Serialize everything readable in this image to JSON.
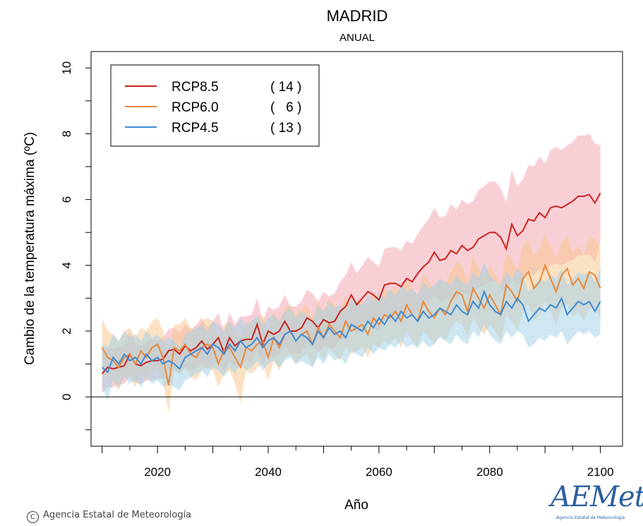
{
  "chart_data": {
    "type": "line",
    "title": "MADRID",
    "subtitle": "ANUAL",
    "xlabel": "Año",
    "ylabel": "Cambio  de la temperatura máxima (ºC)",
    "xlim": [
      2008,
      2104
    ],
    "ylim": [
      -1.5,
      10.5
    ],
    "xticks": [
      2020,
      2040,
      2060,
      2080,
      2100
    ],
    "yticks": [
      0,
      2,
      4,
      6,
      8,
      10
    ],
    "zero_line": true,
    "legend_position": "top-left",
    "x_start": 2010,
    "series": [
      {
        "name": "RCP8.5",
        "count": "( 14 )",
        "color": "#c9231f",
        "band_color": "#f4a8b4",
        "mean": [
          0.7,
          0.9,
          0.85,
          0.9,
          0.95,
          1.3,
          1.0,
          0.95,
          1.05,
          1.1,
          1.1,
          1.15,
          1.4,
          1.45,
          1.3,
          1.55,
          1.4,
          1.5,
          1.7,
          1.45,
          1.6,
          1.8,
          1.35,
          1.8,
          1.55,
          1.7,
          1.75,
          1.75,
          2.2,
          1.6,
          2.0,
          1.9,
          2.0,
          2.3,
          2.0,
          2.0,
          2.1,
          2.4,
          2.3,
          2.1,
          2.35,
          2.25,
          2.3,
          2.6,
          2.75,
          3.1,
          2.8,
          3.0,
          3.2,
          3.1,
          2.95,
          3.4,
          3.45,
          3.45,
          3.35,
          3.6,
          3.5,
          3.75,
          3.95,
          4.1,
          4.4,
          4.15,
          4.2,
          4.45,
          4.35,
          4.6,
          4.45,
          4.55,
          4.8,
          4.9,
          5.0,
          5.0,
          4.85,
          4.5,
          5.25,
          4.9,
          5.05,
          5.4,
          5.35,
          5.6,
          5.45,
          5.75,
          5.8,
          5.75,
          5.85,
          5.95,
          6.1,
          6.1,
          6.15,
          5.9,
          6.2
        ],
        "lower": [
          0.1,
          0.3,
          0.3,
          0.35,
          0.4,
          0.6,
          0.45,
          0.4,
          0.5,
          0.5,
          0.55,
          0.55,
          0.8,
          0.85,
          0.7,
          0.9,
          0.8,
          0.85,
          1.0,
          0.85,
          0.95,
          1.1,
          0.75,
          1.1,
          0.95,
          1.0,
          1.1,
          1.05,
          1.45,
          0.95,
          1.3,
          1.2,
          1.3,
          1.55,
          1.3,
          1.3,
          1.35,
          1.6,
          1.5,
          1.35,
          1.55,
          1.5,
          1.5,
          1.75,
          1.85,
          2.1,
          1.9,
          2.05,
          2.2,
          2.1,
          2.0,
          2.35,
          2.4,
          2.4,
          2.3,
          2.5,
          2.4,
          2.6,
          2.75,
          2.85,
          3.05,
          2.9,
          2.95,
          3.1,
          3.0,
          3.2,
          3.1,
          3.15,
          3.35,
          3.4,
          3.5,
          3.5,
          3.35,
          3.1,
          3.65,
          3.4,
          3.5,
          3.75,
          3.7,
          3.9,
          3.8,
          4.0,
          4.05,
          4.0,
          4.1,
          4.15,
          4.3,
          4.3,
          4.35,
          4.1,
          4.7
        ],
        "upper": [
          1.3,
          1.5,
          1.45,
          1.5,
          1.55,
          2.0,
          1.6,
          1.55,
          1.65,
          1.75,
          1.7,
          1.8,
          2.05,
          2.1,
          1.95,
          2.2,
          2.05,
          2.2,
          2.4,
          2.1,
          2.3,
          2.55,
          2.0,
          2.55,
          2.2,
          2.45,
          2.45,
          2.5,
          3.0,
          2.3,
          2.75,
          2.65,
          2.75,
          3.1,
          2.75,
          2.75,
          2.9,
          3.25,
          3.15,
          2.9,
          3.2,
          3.05,
          3.15,
          3.5,
          3.7,
          4.1,
          3.75,
          4.0,
          4.25,
          4.1,
          3.95,
          4.5,
          4.55,
          4.55,
          4.45,
          4.75,
          4.65,
          4.95,
          5.2,
          5.4,
          5.75,
          5.45,
          5.5,
          5.85,
          5.7,
          6.0,
          5.85,
          5.95,
          6.3,
          6.4,
          6.55,
          6.55,
          6.35,
          5.9,
          6.9,
          6.4,
          6.6,
          7.05,
          7.0,
          7.3,
          7.1,
          7.5,
          7.6,
          7.5,
          7.65,
          7.75,
          7.95,
          7.95,
          8.0,
          7.7,
          7.65
        ]
      },
      {
        "name": "RCP6.0",
        "count": "(   6 )",
        "color": "#e8883a",
        "band_color": "#f7c993",
        "mean": [
          1.5,
          1.2,
          1.1,
          0.9,
          1.2,
          1.3,
          1.0,
          1.4,
          1.2,
          1.5,
          1.6,
          1.2,
          0.35,
          1.5,
          1.4,
          1.6,
          1.3,
          1.2,
          1.5,
          1.6,
          1.5,
          1.0,
          1.4,
          1.5,
          1.2,
          0.9,
          1.5,
          1.4,
          1.6,
          1.7,
          1.2,
          1.8,
          1.5,
          1.9,
          2.0,
          1.7,
          1.9,
          2.0,
          1.6,
          2.1,
          1.8,
          2.2,
          2.0,
          1.8,
          2.3,
          2.0,
          2.1,
          2.2,
          1.9,
          2.4,
          2.2,
          2.5,
          2.4,
          2.6,
          2.3,
          2.8,
          2.5,
          2.3,
          2.9,
          2.6,
          2.4,
          2.7,
          2.5,
          2.9,
          3.2,
          3.1,
          2.6,
          3.3,
          3.0,
          2.7,
          3.1,
          2.8,
          2.5,
          3.4,
          3.2,
          2.9,
          3.6,
          3.8,
          3.3,
          3.5,
          4.0,
          3.6,
          3.2,
          3.7,
          3.9,
          3.4,
          3.6,
          3.3,
          3.8,
          3.7,
          3.3
        ],
        "lower": [
          0.7,
          0.6,
          0.5,
          0.2,
          0.6,
          0.6,
          0.3,
          0.8,
          0.5,
          0.8,
          0.9,
          0.5,
          -0.5,
          0.8,
          0.7,
          0.9,
          0.6,
          0.5,
          0.8,
          0.9,
          0.8,
          0.3,
          0.7,
          0.8,
          0.4,
          -0.2,
          0.8,
          0.7,
          0.9,
          1.0,
          0.5,
          1.1,
          0.8,
          1.2,
          1.3,
          1.0,
          1.2,
          1.3,
          0.9,
          1.4,
          1.1,
          1.5,
          1.3,
          1.1,
          1.5,
          1.3,
          1.4,
          1.5,
          1.2,
          1.6,
          1.5,
          1.7,
          1.6,
          1.8,
          1.5,
          2.0,
          1.7,
          1.5,
          2.0,
          1.8,
          1.6,
          1.9,
          1.7,
          2.1,
          2.3,
          2.2,
          1.8,
          2.4,
          2.1,
          1.9,
          2.2,
          2.0,
          1.7,
          2.5,
          2.3,
          2.0,
          2.6,
          2.8,
          2.3,
          2.5,
          2.9,
          2.6,
          2.2,
          2.7,
          2.8,
          2.4,
          2.6,
          2.3,
          2.7,
          2.7,
          2.4
        ],
        "upper": [
          2.4,
          2.0,
          1.9,
          1.7,
          2.0,
          2.1,
          1.8,
          2.1,
          2.0,
          2.3,
          2.4,
          2.0,
          1.3,
          2.2,
          2.2,
          2.4,
          2.1,
          2.0,
          2.3,
          2.4,
          2.3,
          1.8,
          2.2,
          2.3,
          2.0,
          1.8,
          2.3,
          2.2,
          2.4,
          2.5,
          2.0,
          2.6,
          2.3,
          2.7,
          2.8,
          2.5,
          2.7,
          2.8,
          2.4,
          2.9,
          2.6,
          3.0,
          2.8,
          2.6,
          3.1,
          2.8,
          2.9,
          3.0,
          2.7,
          3.2,
          3.0,
          3.3,
          3.2,
          3.4,
          3.1,
          3.6,
          3.3,
          3.1,
          3.8,
          3.5,
          3.2,
          3.6,
          3.4,
          3.8,
          4.1,
          4.0,
          3.5,
          4.3,
          3.9,
          3.6,
          4.0,
          3.7,
          3.4,
          4.4,
          4.2,
          3.8,
          4.6,
          4.8,
          4.3,
          4.5,
          5.0,
          4.6,
          4.2,
          4.7,
          4.9,
          4.4,
          4.6,
          4.3,
          4.9,
          4.8,
          4.6
        ]
      },
      {
        "name": "RCP4.5",
        "count": "( 13 )",
        "color": "#3d8bd6",
        "band_color": "#a6d4e8",
        "mean": [
          0.9,
          0.75,
          1.2,
          1.0,
          1.3,
          1.1,
          1.2,
          1.0,
          1.3,
          1.1,
          1.2,
          1.0,
          1.1,
          1.0,
          0.85,
          1.2,
          1.3,
          1.4,
          1.5,
          1.3,
          1.6,
          1.5,
          1.3,
          1.6,
          1.4,
          1.7,
          1.5,
          1.6,
          1.8,
          1.5,
          1.7,
          1.8,
          1.6,
          1.9,
          2.0,
          1.7,
          1.9,
          1.8,
          1.6,
          2.0,
          1.8,
          2.1,
          1.9,
          2.0,
          1.8,
          2.2,
          2.1,
          2.0,
          2.3,
          2.1,
          2.4,
          2.2,
          2.5,
          2.3,
          2.6,
          2.4,
          2.5,
          2.3,
          2.6,
          2.4,
          2.5,
          2.7,
          2.6,
          2.5,
          2.8,
          2.6,
          2.5,
          2.9,
          2.7,
          3.2,
          2.8,
          2.6,
          2.5,
          2.9,
          2.7,
          3.0,
          2.8,
          2.3,
          2.5,
          2.7,
          2.6,
          2.8,
          2.7,
          3.0,
          2.5,
          2.7,
          2.9,
          2.8,
          2.9,
          2.6,
          2.9
        ],
        "lower": [
          0.3,
          -0.1,
          0.5,
          0.3,
          0.6,
          0.4,
          0.5,
          0.3,
          0.6,
          0.4,
          0.5,
          0.3,
          0.4,
          0.3,
          0.2,
          0.5,
          0.6,
          0.7,
          0.8,
          0.6,
          0.9,
          0.8,
          0.6,
          0.9,
          0.7,
          1.0,
          0.8,
          0.9,
          1.1,
          0.8,
          1.0,
          1.1,
          0.9,
          1.1,
          1.2,
          1.0,
          1.1,
          1.0,
          0.9,
          1.2,
          1.0,
          1.3,
          1.1,
          1.2,
          1.0,
          1.4,
          1.3,
          1.2,
          1.5,
          1.3,
          1.5,
          1.4,
          1.6,
          1.5,
          1.7,
          1.5,
          1.6,
          1.5,
          1.7,
          1.5,
          1.6,
          1.8,
          1.7,
          1.6,
          1.9,
          1.7,
          1.6,
          2.0,
          1.8,
          2.2,
          1.9,
          1.7,
          1.6,
          2.0,
          1.8,
          2.0,
          1.9,
          1.5,
          1.6,
          1.8,
          1.7,
          1.9,
          1.8,
          2.0,
          1.6,
          1.8,
          2.0,
          1.9,
          2.0,
          1.8,
          1.9
        ],
        "upper": [
          1.6,
          1.5,
          1.9,
          1.7,
          2.0,
          1.8,
          1.9,
          1.7,
          2.0,
          1.8,
          1.9,
          1.7,
          1.8,
          1.7,
          1.5,
          1.9,
          2.0,
          2.1,
          2.2,
          2.0,
          2.3,
          2.2,
          2.0,
          2.3,
          2.1,
          2.4,
          2.2,
          2.3,
          2.5,
          2.2,
          2.4,
          2.5,
          2.3,
          2.6,
          2.7,
          2.4,
          2.6,
          2.5,
          2.3,
          2.8,
          2.6,
          2.9,
          2.7,
          2.8,
          2.6,
          3.0,
          2.9,
          2.8,
          3.1,
          2.9,
          3.2,
          3.0,
          3.3,
          3.1,
          3.4,
          3.2,
          3.3,
          3.1,
          3.5,
          3.3,
          3.4,
          3.6,
          3.5,
          3.4,
          3.7,
          3.5,
          3.4,
          3.8,
          3.6,
          4.1,
          3.7,
          3.5,
          3.4,
          3.8,
          3.6,
          3.9,
          3.7,
          3.2,
          3.4,
          3.6,
          3.5,
          3.7,
          3.6,
          3.9,
          3.4,
          3.6,
          3.8,
          3.7,
          3.8,
          3.5,
          3.9
        ]
      }
    ]
  },
  "footer": {
    "copyright_symbol": "C",
    "copyright": "Agencia Estatal de Meteorología"
  },
  "logo": {
    "wordmark": "AEMet",
    "subtitle": "Agencia Estatal de Meteorología"
  }
}
